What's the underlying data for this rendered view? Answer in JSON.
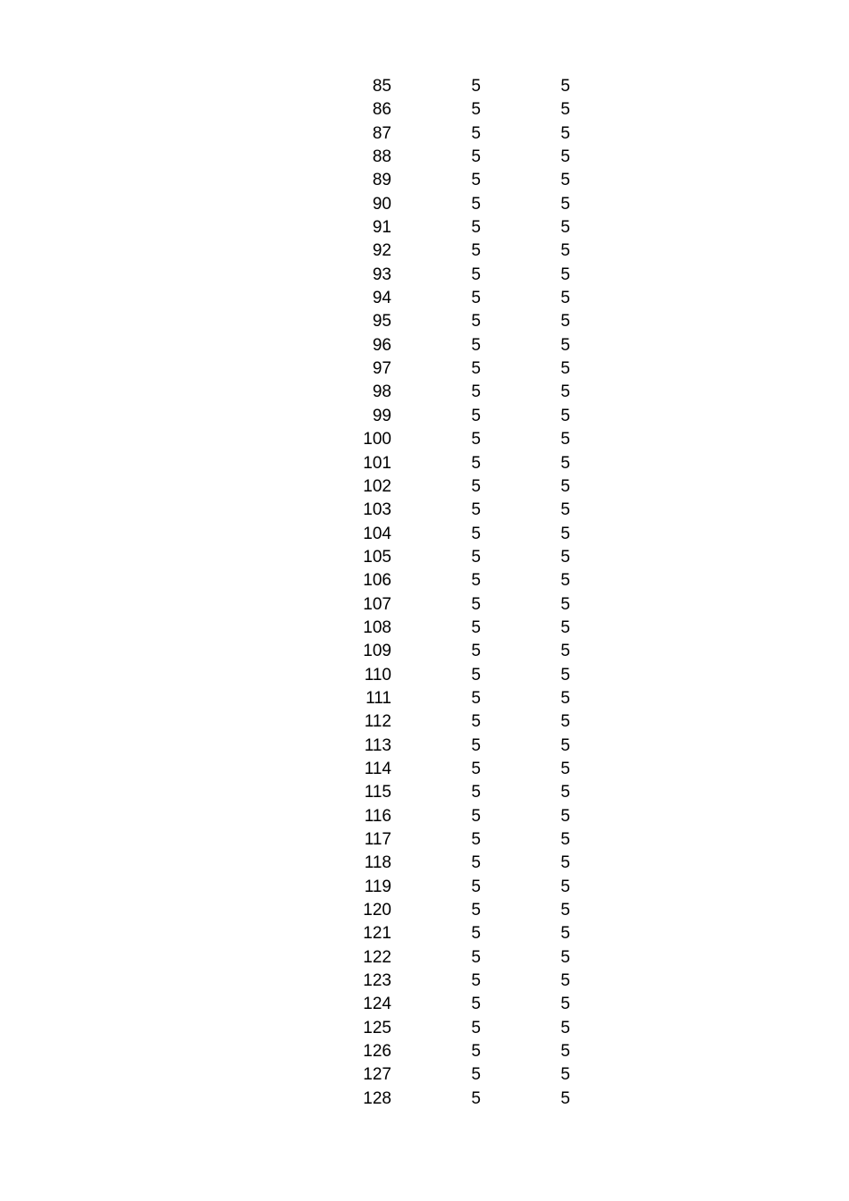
{
  "page": {
    "background_color": "#ffffff",
    "text_color": "#000000"
  },
  "table": {
    "rows": [
      [
        "85",
        "5",
        "5"
      ],
      [
        "86",
        "5",
        "5"
      ],
      [
        "87",
        "5",
        "5"
      ],
      [
        "88",
        "5",
        "5"
      ],
      [
        "89",
        "5",
        "5"
      ],
      [
        "90",
        "5",
        "5"
      ],
      [
        "91",
        "5",
        "5"
      ],
      [
        "92",
        "5",
        "5"
      ],
      [
        "93",
        "5",
        "5"
      ],
      [
        "94",
        "5",
        "5"
      ],
      [
        "95",
        "5",
        "5"
      ],
      [
        "96",
        "5",
        "5"
      ],
      [
        "97",
        "5",
        "5"
      ],
      [
        "98",
        "5",
        "5"
      ],
      [
        "99",
        "5",
        "5"
      ],
      [
        "100",
        "5",
        "5"
      ],
      [
        "101",
        "5",
        "5"
      ],
      [
        "102",
        "5",
        "5"
      ],
      [
        "103",
        "5",
        "5"
      ],
      [
        "104",
        "5",
        "5"
      ],
      [
        "105",
        "5",
        "5"
      ],
      [
        "106",
        "5",
        "5"
      ],
      [
        "107",
        "5",
        "5"
      ],
      [
        "108",
        "5",
        "5"
      ],
      [
        "109",
        "5",
        "5"
      ],
      [
        "110",
        "5",
        "5"
      ],
      [
        "111",
        "5",
        "5"
      ],
      [
        "112",
        "5",
        "5"
      ],
      [
        "113",
        "5",
        "5"
      ],
      [
        "114",
        "5",
        "5"
      ],
      [
        "115",
        "5",
        "5"
      ],
      [
        "116",
        "5",
        "5"
      ],
      [
        "117",
        "5",
        "5"
      ],
      [
        "118",
        "5",
        "5"
      ],
      [
        "119",
        "5",
        "5"
      ],
      [
        "120",
        "5",
        "5"
      ],
      [
        "121",
        "5",
        "5"
      ],
      [
        "122",
        "5",
        "5"
      ],
      [
        "123",
        "5",
        "5"
      ],
      [
        "124",
        "5",
        "5"
      ],
      [
        "125",
        "5",
        "5"
      ],
      [
        "126",
        "5",
        "5"
      ],
      [
        "127",
        "5",
        "5"
      ],
      [
        "128",
        "5",
        "5"
      ]
    ]
  }
}
